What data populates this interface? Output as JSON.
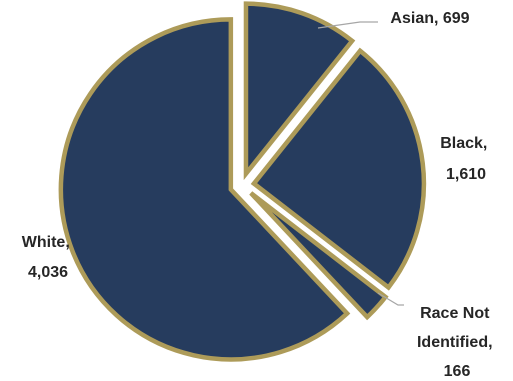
{
  "chart_data": {
    "type": "pie",
    "exploded": true,
    "start_angle_deg": 0,
    "direction": "clockwise",
    "slices": [
      {
        "name": "Asian",
        "value": 699,
        "label_lines": [
          "Asian,  699"
        ]
      },
      {
        "name": "Black",
        "value": 1610,
        "label_lines": [
          "Black,",
          "1,610"
        ]
      },
      {
        "name": "Race Not Identified",
        "value": 166,
        "label_lines": [
          "Race Not",
          "Identified,",
          "166"
        ]
      },
      {
        "name": "White",
        "value": 4036,
        "label_lines": [
          "White,",
          "4,036"
        ]
      }
    ],
    "legend": "none"
  },
  "colors": {
    "slice_fill": "#263c5e",
    "slice_outline": "#ad9b59",
    "leader_line": "#a6a6a6",
    "label_text": "#262626"
  }
}
